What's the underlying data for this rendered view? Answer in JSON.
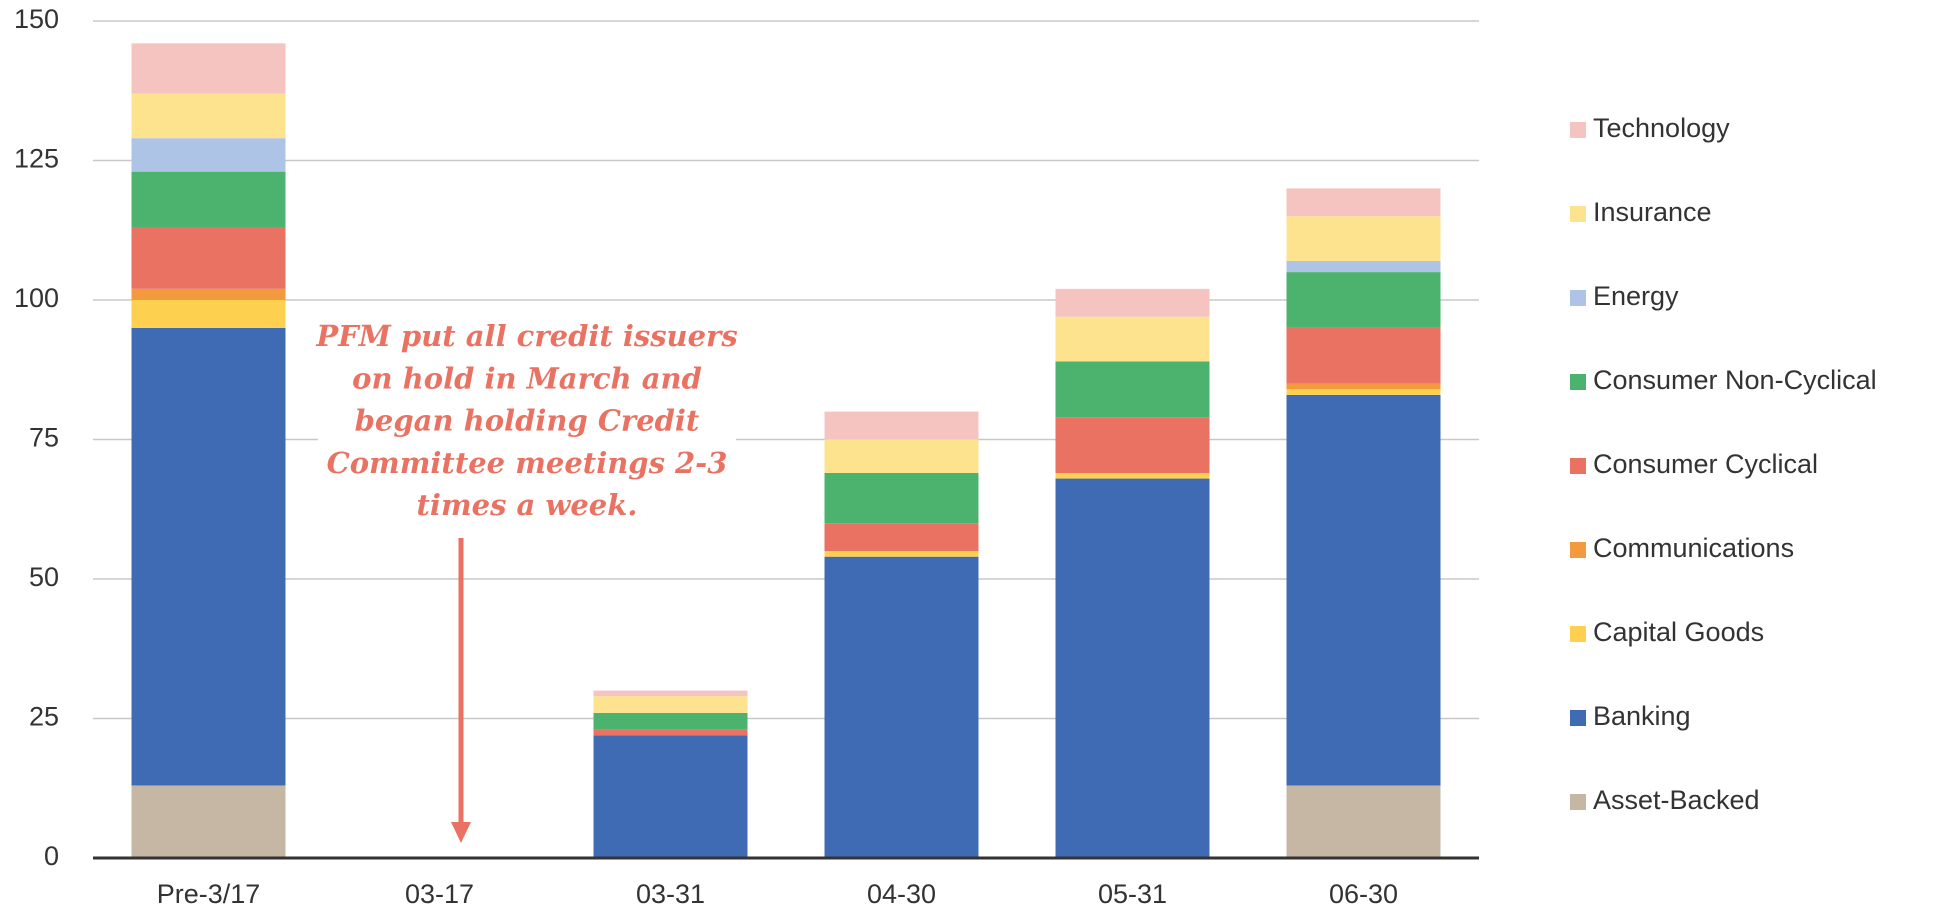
{
  "chart_data": {
    "type": "bar",
    "stacked": true,
    "categories": [
      "Pre-3/17",
      "03-17",
      "03-31",
      "04-30",
      "05-31",
      "06-30"
    ],
    "series": [
      {
        "name": "Asset-Backed",
        "color": "#c5b7a3",
        "values": [
          13,
          0,
          0,
          0,
          0,
          13
        ]
      },
      {
        "name": "Banking",
        "color": "#3f6bb5",
        "values": [
          82,
          0,
          22,
          54,
          68,
          70
        ]
      },
      {
        "name": "Capital Goods",
        "color": "#fdd04f",
        "values": [
          5,
          0,
          0,
          1,
          1,
          1
        ]
      },
      {
        "name": "Communications",
        "color": "#f39a3f",
        "values": [
          2,
          0,
          0,
          0,
          0,
          1
        ]
      },
      {
        "name": "Consumer Cyclical",
        "color": "#e97262",
        "values": [
          11,
          0,
          1,
          5,
          10,
          10
        ]
      },
      {
        "name": "Consumer Non-Cyclical",
        "color": "#4cb36e",
        "values": [
          10,
          0,
          3,
          9,
          10,
          10
        ]
      },
      {
        "name": "Energy",
        "color": "#aec4e6",
        "values": [
          6,
          0,
          0,
          0,
          0,
          2
        ]
      },
      {
        "name": "Insurance",
        "color": "#fde38d",
        "values": [
          8,
          0,
          3,
          6,
          8,
          8
        ]
      },
      {
        "name": "Technology",
        "color": "#f5c4c1",
        "values": [
          9,
          0,
          1,
          5,
          5,
          5
        ]
      }
    ],
    "ylim": [
      0,
      150
    ],
    "yticks": [
      0,
      25,
      50,
      75,
      100,
      125,
      150
    ],
    "grid": true,
    "legend": "right",
    "annotation": [
      "PFM put all credit issuers",
      "on hold in March and",
      "began holding Credit",
      "Committee meetings 2-3",
      "times a week."
    ]
  }
}
